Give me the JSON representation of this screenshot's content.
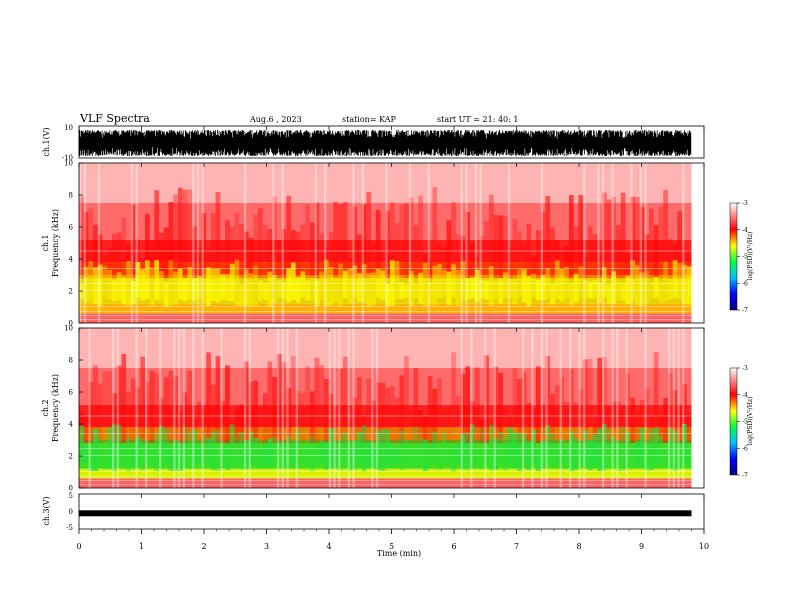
{
  "header": {
    "title": "VLF Spectra",
    "date": "Aug.6 , 2023",
    "station": "station= KAP",
    "start": "start UT = 21: 40: 1"
  },
  "chart_data": [
    {
      "type": "line",
      "panel": "ch1-waveform",
      "ylabel": "ch.1(V)",
      "ylim": [
        -10,
        10
      ],
      "yticks": [
        "10",
        "-10"
      ],
      "xlim": [
        0,
        10
      ],
      "description_values": {
        "typical_range": [
          -10,
          10
        ]
      }
    },
    {
      "type": "heatmap",
      "panel": "ch1-spectrogram",
      "ylabel": "ch.1\nFrequency (kHz)",
      "ylabel_lines": [
        "ch.1",
        "Frequency (kHz)"
      ],
      "ylim": [
        0,
        10
      ],
      "yticks": [
        "0",
        "2",
        "4",
        "6",
        "8",
        "10"
      ],
      "xlim": [
        0,
        9.8
      ],
      "colorbar": {
        "label": "log(PSD)(V²/Hz)",
        "ticks": [
          "-3",
          "-4",
          "-5",
          "-6",
          "-7"
        ],
        "range": [
          -7,
          -3
        ]
      }
    },
    {
      "type": "heatmap",
      "panel": "ch2-spectrogram",
      "ylabel_lines": [
        "ch.2",
        "Frequency (kHz)"
      ],
      "ylim": [
        0,
        10
      ],
      "yticks": [
        "0",
        "2",
        "4",
        "6",
        "8",
        "10"
      ],
      "xlim": [
        0,
        9.8
      ],
      "colorbar": {
        "label": "log(PSD)(V²/Hz)",
        "ticks": [
          "-3",
          "-4",
          "-5",
          "-6",
          "-7"
        ],
        "range": [
          -7,
          -3
        ]
      }
    },
    {
      "type": "line",
      "panel": "ch3-waveform",
      "ylabel": "ch.3(V)",
      "ylim": [
        -5,
        5
      ],
      "yticks": [
        "5",
        "0",
        "-5"
      ],
      "xlim": [
        0,
        10
      ],
      "level": -0.5
    }
  ],
  "xaxis": {
    "label": "Time (min)",
    "ticks": [
      "0",
      "1",
      "2",
      "3",
      "4",
      "5",
      "6",
      "7",
      "8",
      "9",
      "10"
    ]
  }
}
